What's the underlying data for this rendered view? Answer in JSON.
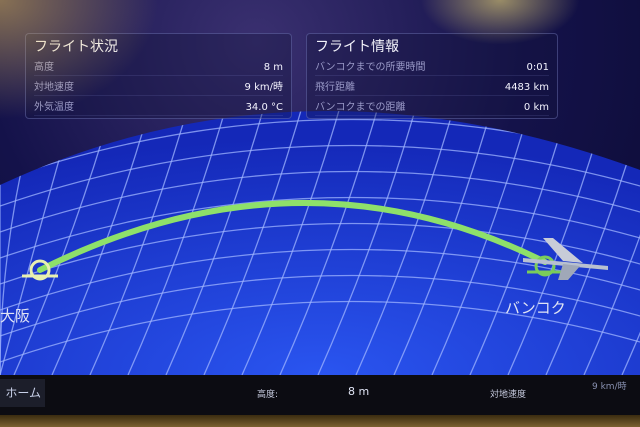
{
  "flight_status": {
    "title": "フライト状況",
    "rows": [
      {
        "label": "高度",
        "value": "8 m"
      },
      {
        "label": "対地速度",
        "value": "9 km/時"
      },
      {
        "label": "外気温度",
        "value": "34.0 °C"
      }
    ]
  },
  "flight_info": {
    "title": "フライト情報",
    "rows": [
      {
        "label": "バンコクまでの所要時間",
        "value": "0:01"
      },
      {
        "label": "飛行距離",
        "value": "4483 km"
      },
      {
        "label": "バンコクまでの距離",
        "value": "0 km"
      }
    ]
  },
  "map": {
    "origin": "大阪",
    "destination": "バンコク",
    "route_color": "#8ee06a",
    "grid_color": "#9fb4ff",
    "ocean_color": "#1a3ad8",
    "progress_percent": 100
  },
  "bottom_bar": {
    "home_label": "ホーム",
    "altitude_label": "高度:",
    "altitude_value": "8 m",
    "speed_label": "対地速度",
    "speed_value": "9 km/時"
  }
}
